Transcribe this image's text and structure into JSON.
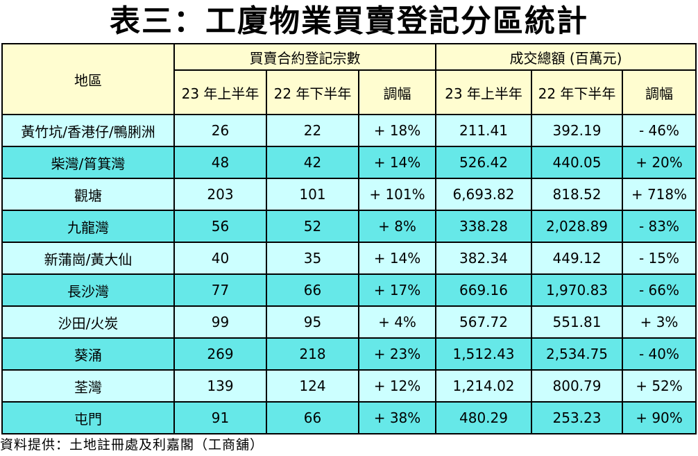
{
  "title": "表三：工廈物業買賣登記分區統計",
  "table": {
    "district_header": "地區",
    "group_headers": [
      "買賣合約登記宗數",
      "成交總額 (百萬元)"
    ],
    "sub_headers": [
      "23 年上半年",
      "22 年下半年",
      "調幅",
      "23 年上半年",
      "22 年下半年",
      "調幅"
    ],
    "rows": [
      [
        "黃竹坑/香港仔/鴨脷洲",
        "26",
        "22",
        "+ 18%",
        "211.41",
        "392.19",
        "- 46%"
      ],
      [
        "柴灣/筲箕灣",
        "48",
        "42",
        "+ 14%",
        "526.42",
        "440.05",
        "+ 20%"
      ],
      [
        "觀塘",
        "203",
        "101",
        "+ 101%",
        "6,693.82",
        "818.52",
        "+ 718%"
      ],
      [
        "九龍灣",
        "56",
        "52",
        "+ 8%",
        "338.28",
        "2,028.89",
        "- 83%"
      ],
      [
        "新蒲崗/黃大仙",
        "40",
        "35",
        "+ 14%",
        "382.34",
        "449.12",
        "- 15%"
      ],
      [
        "長沙灣",
        "77",
        "66",
        "+ 17%",
        "669.16",
        "1,970.83",
        "- 66%"
      ],
      [
        "沙田/火炭",
        "99",
        "95",
        "+ 4%",
        "567.72",
        "551.81",
        "+ 3%"
      ],
      [
        "葵涌",
        "269",
        "218",
        "+ 23%",
        "1,512.43",
        "2,534.75",
        "- 40%"
      ],
      [
        "荃灣",
        "139",
        "124",
        "+ 12%",
        "1,214.02",
        "800.79",
        "+ 52%"
      ],
      [
        "屯門",
        "91",
        "66",
        "+ 38%",
        "480.29",
        "253.23",
        "+ 90%"
      ]
    ]
  },
  "footer": "資料提供：土地註冊處及利嘉閣（工商舖）",
  "colors": {
    "header_bg": "#fffdd0",
    "row_light": "#ccffff",
    "row_dark": "#66e8e8"
  }
}
